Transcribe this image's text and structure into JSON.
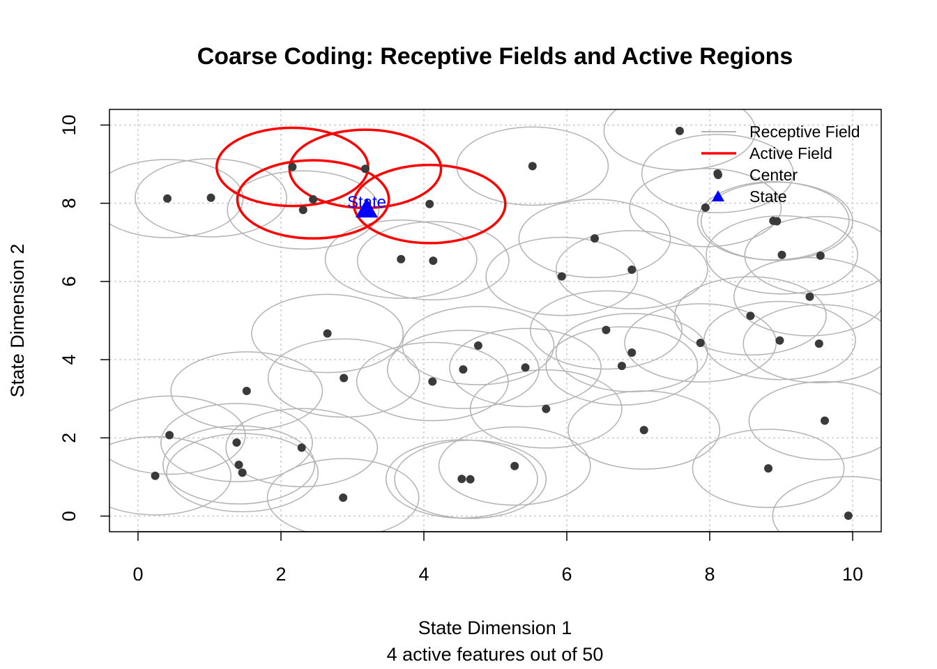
{
  "chart_data": {
    "type": "scatter",
    "title": "Coarse Coding: Receptive Fields and Active Regions",
    "xlabel": "State Dimension 1",
    "subtitle": "4 active features out of 50",
    "ylabel": "State Dimension 2",
    "xlim": [
      -0.4,
      10.4
    ],
    "ylim": [
      -0.4,
      10.4
    ],
    "xticks": [
      0,
      2,
      4,
      6,
      8,
      10
    ],
    "yticks": [
      0,
      2,
      4,
      6,
      8,
      10
    ],
    "grid": true,
    "radius_x": 1.06,
    "radius_y": 1.0,
    "centers": [
      [
        7.58,
        9.85
      ],
      [
        5.52,
        8.95
      ],
      [
        2.16,
        8.93
      ],
      [
        3.18,
        8.88
      ],
      [
        8.11,
        8.76
      ],
      [
        0.41,
        8.12
      ],
      [
        1.02,
        8.14
      ],
      [
        2.45,
        8.1
      ],
      [
        2.31,
        7.83
      ],
      [
        4.08,
        7.98
      ],
      [
        7.94,
        7.89
      ],
      [
        8.89,
        7.55
      ],
      [
        8.94,
        7.54
      ],
      [
        6.39,
        7.1
      ],
      [
        9.01,
        6.68
      ],
      [
        9.55,
        6.66
      ],
      [
        3.68,
        6.57
      ],
      [
        4.13,
        6.53
      ],
      [
        6.91,
        6.3
      ],
      [
        5.93,
        6.13
      ],
      [
        9.4,
        5.61
      ],
      [
        8.57,
        5.12
      ],
      [
        6.55,
        4.76
      ],
      [
        2.65,
        4.67
      ],
      [
        4.76,
        4.36
      ],
      [
        8.98,
        4.49
      ],
      [
        9.53,
        4.41
      ],
      [
        7.87,
        4.43
      ],
      [
        6.91,
        4.18
      ],
      [
        6.77,
        3.84
      ],
      [
        4.55,
        3.75
      ],
      [
        5.42,
        3.8
      ],
      [
        2.88,
        3.53
      ],
      [
        4.12,
        3.44
      ],
      [
        1.52,
        3.2
      ],
      [
        5.71,
        2.74
      ],
      [
        9.61,
        2.44
      ],
      [
        7.08,
        2.2
      ],
      [
        0.44,
        2.07
      ],
      [
        1.38,
        1.88
      ],
      [
        2.29,
        1.75
      ],
      [
        1.41,
        1.31
      ],
      [
        8.82,
        1.22
      ],
      [
        5.27,
        1.28
      ],
      [
        1.46,
        1.11
      ],
      [
        0.24,
        1.03
      ],
      [
        4.53,
        0.95
      ],
      [
        4.65,
        0.94
      ],
      [
        2.87,
        0.47
      ],
      [
        9.94,
        0.01
      ]
    ],
    "active_indices": [
      2,
      3,
      7,
      9
    ],
    "state": {
      "x": 3.2,
      "y": 7.85,
      "label": "State"
    },
    "legend": {
      "position": "top-right",
      "entries": [
        "Receptive Field",
        "Active Field",
        "Center",
        "State"
      ]
    },
    "colors": {
      "receptive": "#b3b3b3",
      "active": "#ff0000",
      "center": "#3a3a3a",
      "state": "#0000ff",
      "grid": "#cccccc"
    }
  }
}
